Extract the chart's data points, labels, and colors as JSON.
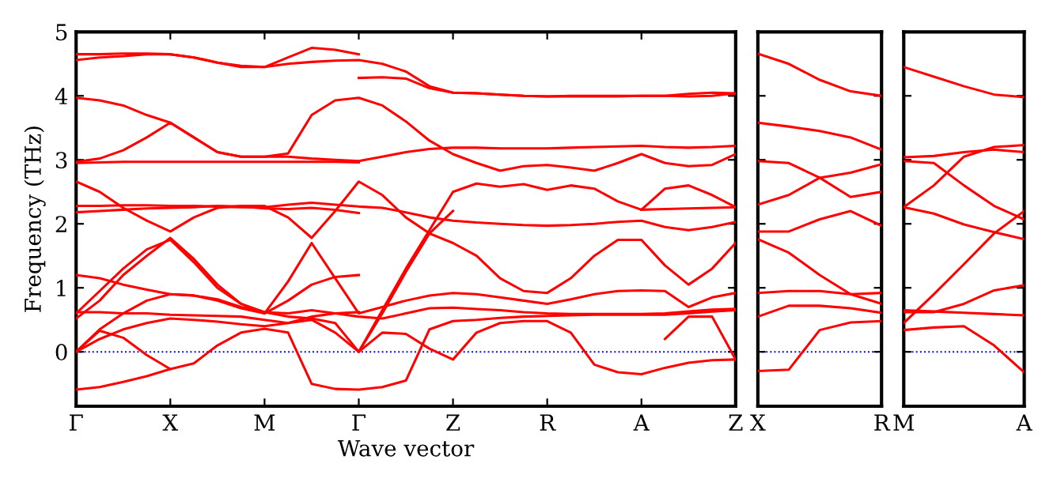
{
  "chart_data": [
    {
      "type": "line",
      "xlabel": "Wave vector",
      "ylabel": "Frequency (THz)",
      "ylim": [
        -0.85,
        5
      ],
      "categories": [
        "Γ",
        null,
        null,
        null,
        "X",
        null,
        null,
        null,
        "M",
        null,
        null,
        null,
        "Γ",
        null,
        null,
        null,
        "Z",
        null,
        null,
        null,
        "R",
        null,
        null,
        null,
        "A",
        null,
        null,
        null,
        "Z"
      ],
      "yticks": [
        0,
        1,
        2,
        3,
        4,
        5
      ],
      "ref_lines": [
        {
          "axis": "y",
          "value": 0,
          "label": null,
          "color": "#0000ff",
          "line_style": "dotted"
        }
      ],
      "series": [
        {
          "color": "#ff0000",
          "values": [
            4.56,
            4.6,
            4.62,
            4.65,
            4.65,
            4.6,
            4.52,
            4.45,
            4.45,
            4.5,
            4.53,
            4.55,
            4.56,
            4.5,
            4.38,
            4.15,
            4.05,
            4.04,
            4.02,
            4.0,
            3.99,
            4.0,
            4.0,
            4.0,
            4.0,
            4.0,
            4.03,
            4.05,
            4.04
          ]
        },
        {
          "color": "#ff0000",
          "values": [
            4.65,
            4.65,
            4.66,
            4.66,
            4.65,
            4.6,
            4.52,
            4.47,
            4.45,
            4.6,
            4.75,
            4.72,
            4.65,
            null,
            null,
            null,
            null,
            null,
            null,
            null,
            null,
            null,
            null,
            null,
            null,
            null,
            null,
            null,
            null
          ]
        },
        {
          "color": "#ff0000",
          "values": [
            3.97,
            3.93,
            3.85,
            3.7,
            3.58,
            3.35,
            3.12,
            3.05,
            3.05,
            3.1,
            3.7,
            3.93,
            3.97,
            3.85,
            3.6,
            3.3,
            3.09,
            2.95,
            2.83,
            2.9,
            2.92,
            2.88,
            2.83,
            2.95,
            3.09,
            2.95,
            2.9,
            2.92,
            3.09
          ]
        },
        {
          "color": "#ff0000",
          "values": [
            2.97,
            3.02,
            3.15,
            3.35,
            3.58,
            3.35,
            3.12,
            3.05,
            3.05,
            3.05,
            3.02,
            3.0,
            2.98,
            3.05,
            3.12,
            3.17,
            3.19,
            3.19,
            3.18,
            3.18,
            3.18,
            3.19,
            3.2,
            3.21,
            3.22,
            3.2,
            3.19,
            3.2,
            3.22
          ]
        },
        {
          "color": "#ff0000",
          "values": [
            2.95,
            2.96,
            2.97,
            2.97,
            2.97,
            2.97,
            2.97,
            2.97,
            2.97,
            2.97,
            2.97,
            2.97,
            2.96,
            null,
            null,
            null,
            null,
            null,
            null,
            null,
            null,
            null,
            null,
            null,
            null,
            null,
            null,
            null,
            null
          ]
        },
        {
          "color": "#ff0000",
          "values": [
            2.66,
            2.5,
            2.25,
            2.05,
            1.88,
            2.1,
            2.25,
            2.28,
            2.28,
            2.1,
            1.78,
            2.2,
            2.66,
            2.45,
            2.1,
            1.85,
            1.7,
            1.5,
            1.15,
            0.95,
            0.92,
            1.15,
            1.5,
            1.75,
            1.75,
            1.35,
            1.05,
            1.3,
            1.7
          ]
        },
        {
          "color": "#ff0000",
          "values": [
            2.28,
            2.28,
            2.29,
            2.29,
            2.28,
            2.28,
            2.27,
            2.26,
            2.26,
            2.3,
            2.33,
            2.3,
            2.27,
            2.25,
            2.18,
            2.1,
            2.05,
            2.02,
            2.0,
            1.98,
            1.97,
            1.98,
            2.0,
            2.03,
            2.05,
            1.95,
            1.9,
            1.95,
            2.03
          ]
        },
        {
          "color": "#ff0000",
          "values": [
            2.18,
            2.2,
            2.22,
            2.24,
            2.25,
            2.26,
            2.28,
            2.27,
            2.24,
            2.23,
            2.25,
            2.22,
            2.17,
            null,
            null,
            null,
            null,
            null,
            null,
            null,
            null,
            null,
            null,
            null,
            null,
            null,
            null,
            null,
            null
          ]
        },
        {
          "color": "#ff0000",
          "values": [
            1.2,
            1.15,
            1.05,
            0.97,
            0.9,
            0.88,
            0.8,
            0.68,
            0.6,
            0.8,
            1.05,
            1.17,
            1.2,
            null,
            null,
            null,
            null,
            null,
            null,
            null,
            null,
            null,
            null,
            null,
            null,
            null,
            null,
            null,
            null
          ]
        },
        {
          "color": "#ff0000",
          "values": [
            0.52,
            0.8,
            1.2,
            1.5,
            1.78,
            1.45,
            1.05,
            0.75,
            0.6,
            1.1,
            1.7,
            1.15,
            0.6,
            0.7,
            0.8,
            0.88,
            0.92,
            0.9,
            0.85,
            0.8,
            0.75,
            0.82,
            0.9,
            0.95,
            0.96,
            0.95,
            0.7,
            0.85,
            0.92
          ]
        },
        {
          "color": "#ff0000",
          "values": [
            0.6,
            0.95,
            1.3,
            1.6,
            1.75,
            1.4,
            1.0,
            0.75,
            0.62,
            0.6,
            0.65,
            0.6,
            0.55,
            0.52,
            0.6,
            0.68,
            0.69,
            0.67,
            0.65,
            0.62,
            0.6,
            0.59,
            0.59,
            0.59,
            0.59,
            0.6,
            0.63,
            0.66,
            0.67
          ]
        },
        {
          "color": "#ff0000",
          "values": [
            0.62,
            0.62,
            0.6,
            0.6,
            0.58,
            0.57,
            0.56,
            0.55,
            0.5,
            0.45,
            0.55,
            0.6,
            0.62,
            null,
            null,
            null,
            null,
            null,
            null,
            null,
            null,
            null,
            null,
            null,
            null,
            null,
            null,
            null,
            null
          ]
        },
        {
          "color": "#ff0000",
          "values": [
            0,
            0.35,
            0.6,
            0.8,
            0.9,
            0.88,
            0.82,
            0.7,
            0.62,
            0.55,
            0.52,
            0.45,
            0,
            0.65,
            1.3,
            1.9,
            2.5,
            2.63,
            2.58,
            2.62,
            2.53,
            2.6,
            2.55,
            2.35,
            2.22,
            2.55,
            2.6,
            2.45,
            2.26
          ]
        },
        {
          "color": "#ff0000",
          "values": [
            0,
            0.2,
            0.35,
            0.45,
            0.52,
            0.5,
            0.47,
            0.43,
            0.4,
            0.45,
            0.5,
            0.3,
            0,
            0.3,
            0.28,
            0.05,
            -0.12,
            0.3,
            0.45,
            0.48,
            0.48,
            0.3,
            -0.2,
            -0.32,
            -0.35,
            -0.25,
            -0.17,
            -0.13,
            -0.12
          ]
        },
        {
          "color": "#ff0000",
          "values": [
            0,
            0.33,
            0.22,
            -0.05,
            -0.27,
            -0.18,
            0.1,
            0.3,
            0.36,
            0.3,
            -0.5,
            -0.58,
            -0.59,
            -0.55,
            -0.45,
            0.35,
            0.48,
            0.5,
            0.53,
            0.55,
            0.56,
            0.57,
            0.58,
            0.58,
            0.58,
            0.58,
            0.6,
            0.63,
            0.65
          ]
        },
        {
          "color": "#ff0000",
          "values": [
            -0.59,
            -0.55,
            -0.47,
            -0.38,
            -0.27,
            null,
            null,
            null,
            null,
            null,
            null,
            null,
            null,
            null,
            null,
            null,
            null,
            null,
            null,
            null,
            null,
            null,
            null,
            null,
            null,
            null,
            null,
            null,
            null
          ]
        },
        {
          "color": "#ff0000",
          "values": [
            null,
            null,
            null,
            null,
            null,
            null,
            null,
            null,
            null,
            null,
            null,
            null,
            4.28,
            4.29,
            4.27,
            4.12,
            4.05,
            4.04,
            4.02,
            4.0,
            3.99,
            3.99,
            3.99,
            3.99,
            4.0,
            4.0,
            3.99,
            4.0,
            4.04
          ]
        },
        {
          "color": "#ff0000",
          "values": [
            null,
            null,
            null,
            null,
            null,
            null,
            null,
            null,
            null,
            null,
            null,
            null,
            0,
            0.6,
            1.25,
            1.85,
            2.2,
            null,
            null,
            null,
            null,
            null,
            null,
            null,
            null,
            null,
            null,
            null,
            null
          ]
        },
        {
          "color": "#ff0000",
          "values": [
            null,
            null,
            null,
            null,
            null,
            null,
            null,
            null,
            null,
            null,
            null,
            null,
            null,
            null,
            null,
            null,
            null,
            null,
            null,
            null,
            null,
            null,
            null,
            null,
            2.22,
            2.23,
            2.24,
            2.25,
            2.26
          ]
        },
        {
          "color": "#ff0000",
          "values": [
            null,
            null,
            null,
            null,
            null,
            null,
            null,
            null,
            null,
            null,
            null,
            null,
            null,
            null,
            null,
            null,
            null,
            null,
            null,
            null,
            null,
            null,
            null,
            null,
            null,
            0.2,
            0.55,
            0.55,
            -0.12
          ]
        }
      ]
    },
    {
      "type": "line",
      "ylim": [
        -0.85,
        5
      ],
      "categories": [
        "X",
        null,
        null,
        null,
        "R"
      ],
      "yticks": [
        0,
        1,
        2,
        3,
        4,
        5
      ],
      "tick_labels": "x",
      "ref_lines": [
        {
          "axis": "y",
          "value": 0,
          "label": null,
          "color": "#0000ff",
          "line_style": "dotted"
        }
      ],
      "series": [
        {
          "color": "#ff0000",
          "values": [
            4.66,
            4.5,
            4.25,
            4.07,
            4.0
          ]
        },
        {
          "color": "#ff0000",
          "values": [
            3.58,
            3.52,
            3.45,
            3.35,
            3.16
          ]
        },
        {
          "color": "#ff0000",
          "values": [
            2.98,
            2.95,
            2.72,
            2.42,
            2.5
          ]
        },
        {
          "color": "#ff0000",
          "values": [
            2.3,
            2.45,
            2.72,
            2.8,
            2.93
          ]
        },
        {
          "color": "#ff0000",
          "values": [
            1.88,
            1.88,
            2.07,
            2.2,
            1.97
          ]
        },
        {
          "color": "#ff0000",
          "values": [
            1.76,
            1.55,
            1.2,
            0.9,
            0.75
          ]
        },
        {
          "color": "#ff0000",
          "values": [
            0.92,
            0.95,
            0.95,
            0.9,
            0.92
          ]
        },
        {
          "color": "#ff0000",
          "values": [
            0.55,
            0.72,
            0.72,
            0.68,
            0.61
          ]
        },
        {
          "color": "#ff0000",
          "values": [
            -0.3,
            -0.28,
            0.34,
            0.46,
            0.48
          ]
        }
      ]
    },
    {
      "type": "line",
      "ylim": [
        -0.85,
        5
      ],
      "categories": [
        "M",
        null,
        null,
        null,
        "A"
      ],
      "yticks": [
        0,
        1,
        2,
        3,
        4,
        5
      ],
      "tick_labels": "x",
      "ref_lines": [
        {
          "axis": "y",
          "value": 0,
          "label": null,
          "color": "#0000ff",
          "line_style": "dotted"
        }
      ],
      "series": [
        {
          "color": "#ff0000",
          "values": [
            4.45,
            4.3,
            4.15,
            4.02,
            3.98
          ]
        },
        {
          "color": "#ff0000",
          "values": [
            3.04,
            3.06,
            3.12,
            3.16,
            3.12
          ]
        },
        {
          "color": "#ff0000",
          "values": [
            2.98,
            2.95,
            2.6,
            2.28,
            2.07
          ]
        },
        {
          "color": "#ff0000",
          "values": [
            2.26,
            2.6,
            3.05,
            3.2,
            3.23
          ]
        },
        {
          "color": "#ff0000",
          "values": [
            2.26,
            2.16,
            1.99,
            1.87,
            1.76
          ]
        },
        {
          "color": "#ff0000",
          "values": [
            0.45,
            0.9,
            1.37,
            1.85,
            2.2
          ]
        },
        {
          "color": "#ff0000",
          "values": [
            0.65,
            0.63,
            0.61,
            0.59,
            0.57
          ]
        },
        {
          "color": "#ff0000",
          "values": [
            0.62,
            0.62,
            0.75,
            0.96,
            1.04
          ]
        },
        {
          "color": "#ff0000",
          "values": [
            0.34,
            0.38,
            0.4,
            0.1,
            -0.32
          ]
        }
      ]
    }
  ]
}
